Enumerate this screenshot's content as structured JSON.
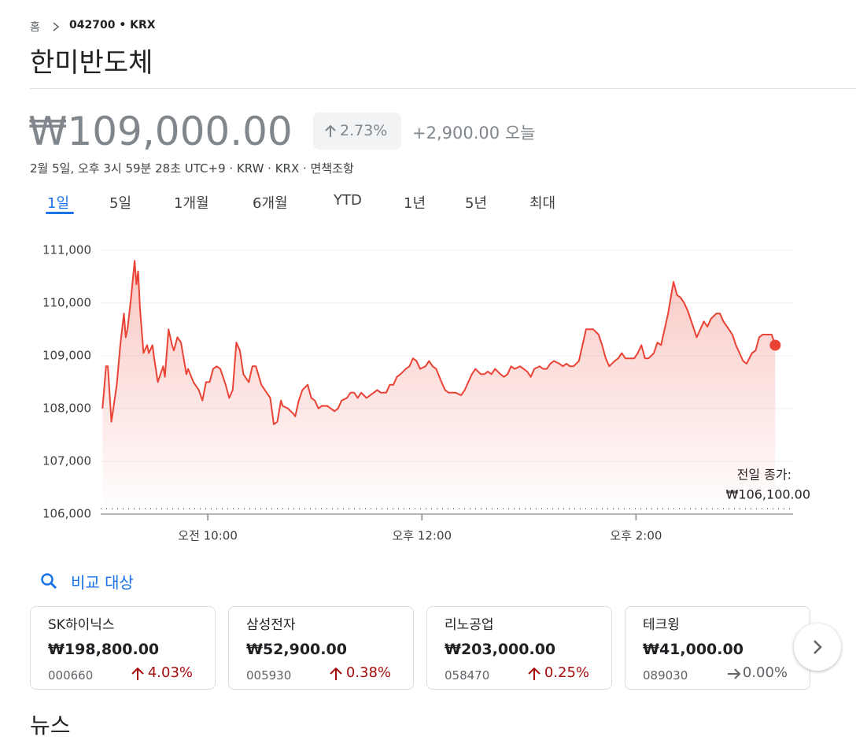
{
  "breadcrumb": {
    "home": "홈",
    "symbol": "042700 • KRX"
  },
  "title": "한미반도체",
  "price": "₩109,000.00",
  "change_percent": "2.73%",
  "change_amount": "+2,900.00",
  "change_period": "오늘",
  "timestamp": "2월 5일, 오후 3시 59분 28초 UTC+9 · KRW · KRX · 면책조항",
  "tabs": [
    "1일",
    "5일",
    "1개월",
    "6개월",
    "YTD",
    "1년",
    "5년",
    "최대"
  ],
  "chart_data": {
    "type": "line",
    "color": "#ea4335",
    "grid": true,
    "x": [
      1,
      3,
      4,
      6,
      9,
      11,
      13,
      14,
      15,
      17,
      19,
      20,
      21,
      22,
      24,
      26,
      27,
      29,
      30,
      32,
      33,
      35,
      36,
      38,
      40,
      41,
      43,
      45,
      46,
      48,
      49,
      52,
      55,
      57,
      59,
      61,
      63,
      65,
      67,
      70,
      72,
      74,
      76,
      78,
      80,
      83,
      85,
      87,
      90,
      93,
      95,
      97,
      99,
      101,
      102,
      105,
      108,
      109,
      111,
      113,
      116,
      118,
      120,
      122,
      124,
      127,
      129,
      131,
      133,
      135,
      138,
      140,
      142,
      144,
      146,
      149,
      151,
      153,
      155,
      157,
      160,
      162,
      164,
      166,
      168,
      171,
      173,
      175,
      177,
      179,
      182,
      184,
      186,
      188,
      191,
      193,
      195,
      197,
      199,
      202,
      204,
      206,
      208,
      210,
      213,
      215,
      217,
      219,
      221,
      224,
      226,
      228,
      230,
      232,
      235,
      237,
      239,
      241,
      243,
      246,
      248,
      250,
      252,
      254,
      257,
      259,
      261,
      263,
      265,
      268,
      270,
      272,
      274,
      276,
      279,
      281,
      283,
      285,
      288,
      290,
      292,
      294,
      296,
      299,
      301,
      303,
      305,
      307,
      310,
      312,
      314,
      316,
      318,
      321,
      323,
      325,
      327,
      329,
      332,
      334,
      336,
      338,
      340,
      342,
      345,
      347,
      349,
      351,
      354,
      356,
      358,
      360,
      362,
      365,
      367,
      369,
      371,
      374,
      376,
      378
    ],
    "values": [
      108000,
      108800,
      108800,
      107750,
      108450,
      109200,
      109800,
      109350,
      109500,
      110100,
      110800,
      110350,
      110600,
      109900,
      109050,
      109200,
      109050,
      109200,
      108950,
      108500,
      108600,
      108800,
      108600,
      109500,
      109200,
      109100,
      109350,
      109250,
      109050,
      108650,
      108750,
      108500,
      108350,
      108150,
      108500,
      108500,
      108750,
      108800,
      108750,
      108450,
      108200,
      108350,
      109250,
      109100,
      108650,
      108500,
      108800,
      108800,
      108450,
      108300,
      108200,
      107700,
      107750,
      108150,
      108050,
      108000,
      107900,
      107850,
      108150,
      108350,
      108450,
      108200,
      108150,
      108000,
      108050,
      108050,
      108000,
      107950,
      108000,
      108150,
      108200,
      108300,
      108300,
      108200,
      108300,
      108200,
      108250,
      108300,
      108350,
      108300,
      108300,
      108450,
      108450,
      108600,
      108650,
      108750,
      108800,
      108950,
      108900,
      108750,
      108800,
      108900,
      108800,
      108750,
      108500,
      108350,
      108300,
      108300,
      108300,
      108250,
      108350,
      108500,
      108650,
      108750,
      108650,
      108650,
      108700,
      108650,
      108750,
      108650,
      108600,
      108650,
      108800,
      108750,
      108800,
      108750,
      108700,
      108600,
      108750,
      108800,
      108750,
      108750,
      108850,
      108900,
      108850,
      108800,
      108850,
      108800,
      108800,
      108900,
      109200,
      109500,
      109500,
      109500,
      109400,
      109200,
      108950,
      108800,
      108900,
      108950,
      109050,
      108950,
      108950,
      108950,
      109050,
      109200,
      108950,
      108950,
      109050,
      109250,
      109200,
      109500,
      109800,
      110400,
      110150,
      110100,
      110000,
      109850,
      109550,
      109350,
      109500,
      109650,
      109550,
      109700,
      109800,
      109800,
      109650,
      109550,
      109400,
      109200,
      109050,
      108900,
      108850,
      109050,
      109100,
      109350,
      109400,
      109400,
      109400,
      109200
    ],
    "xlim": [
      0,
      388
    ],
    "xticks": [
      {
        "value": 60,
        "label": "오전 10:00"
      },
      {
        "value": 180,
        "label": "오후 12:00"
      },
      {
        "value": 300,
        "label": "오후 2:00"
      }
    ],
    "ylim": [
      106000,
      111250
    ],
    "yticks": [
      {
        "value": 106000,
        "label": "106,000"
      },
      {
        "value": 107000,
        "label": "107,000"
      },
      {
        "value": 108000,
        "label": "108,000"
      },
      {
        "value": 109000,
        "label": "109,000"
      },
      {
        "value": 110000,
        "label": "110,000"
      },
      {
        "value": 111000,
        "label": "111,000"
      }
    ],
    "previous_close_title": "전일 종가:",
    "previous_close": {
      "value": 106100,
      "label": "₩106,100.00"
    }
  },
  "compare": {
    "title": "비교 대상",
    "cards": [
      {
        "name": "SK하이닉스",
        "price": "₩198,800.00",
        "code": "000660",
        "change": "4.03%",
        "trend": "up"
      },
      {
        "name": "삼성전자",
        "price": "₩52,900.00",
        "code": "005930",
        "change": "0.38%",
        "trend": "up"
      },
      {
        "name": "리노공업",
        "price": "₩203,000.00",
        "code": "058470",
        "change": "0.25%",
        "trend": "up"
      },
      {
        "name": "테크윙",
        "price": "₩41,000.00",
        "code": "089030",
        "change": "0.00%",
        "trend": "flat"
      }
    ]
  },
  "news_title": "뉴스"
}
